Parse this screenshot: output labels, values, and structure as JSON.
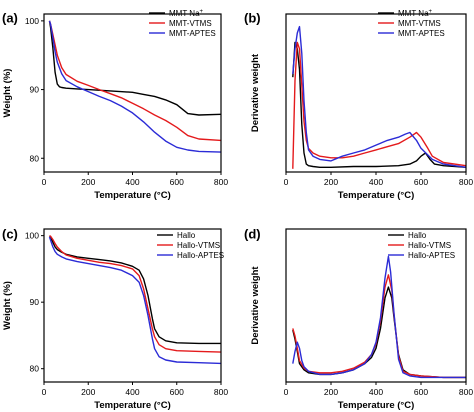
{
  "chart_data": [
    {
      "panel": "(a)",
      "type": "line",
      "xlabel": "Temperature (°C)",
      "ylabel": "Weight (%)",
      "xlim": [
        0,
        800
      ],
      "ylim": [
        78,
        101
      ],
      "xticks": [
        0,
        200,
        400,
        600,
        800
      ],
      "yticks": [
        80,
        90,
        100
      ],
      "legend_position": "top-right",
      "series": [
        {
          "name": "MMT Na+",
          "legend_main": "MMT Na",
          "legend_sup": "+",
          "color": "#000000",
          "x": [
            25,
            30,
            40,
            50,
            60,
            70,
            80,
            100,
            150,
            200,
            300,
            400,
            450,
            500,
            550,
            600,
            650,
            700,
            800
          ],
          "y": [
            100,
            99,
            96,
            92.5,
            90.8,
            90.4,
            90.3,
            90.2,
            90.1,
            90,
            89.8,
            89.6,
            89.3,
            89,
            88.5,
            87.8,
            86.5,
            86.3,
            86.4
          ]
        },
        {
          "name": "MMT-VTMS",
          "color": "#e41a1c",
          "x": [
            25,
            30,
            40,
            50,
            60,
            80,
            100,
            150,
            200,
            250,
            300,
            350,
            400,
            450,
            500,
            550,
            600,
            650,
            700,
            800
          ],
          "y": [
            100,
            99.5,
            98,
            96.5,
            95,
            93.2,
            92.2,
            91.2,
            90.6,
            90,
            89.4,
            88.8,
            88,
            87.2,
            86.3,
            85.5,
            84.5,
            83.3,
            82.8,
            82.6
          ]
        },
        {
          "name": "MMT-APTES",
          "color": "#2b2bd6",
          "x": [
            25,
            30,
            40,
            50,
            60,
            80,
            100,
            150,
            200,
            250,
            300,
            350,
            400,
            450,
            500,
            550,
            600,
            650,
            700,
            800
          ],
          "y": [
            100,
            99.5,
            97.5,
            95.5,
            94,
            92.3,
            91.3,
            90.4,
            89.7,
            89,
            88.4,
            87.6,
            86.6,
            85.3,
            83.8,
            82.5,
            81.6,
            81.2,
            81,
            80.9
          ]
        }
      ]
    },
    {
      "panel": "(b)",
      "type": "line",
      "xlabel": "Temperature (°C)",
      "ylabel": "Derivative weight",
      "xlim": [
        0,
        800
      ],
      "ylim": [
        0,
        1
      ],
      "xticks": [
        0,
        200,
        400,
        600,
        800
      ],
      "yticks": [],
      "legend_position": "top-right",
      "series": [
        {
          "name": "MMT Na+",
          "legend_main": "MMT Na",
          "legend_sup": "+",
          "color": "#000000",
          "x": [
            30,
            40,
            50,
            60,
            70,
            80,
            90,
            100,
            120,
            150,
            200,
            300,
            400,
            500,
            550,
            580,
            600,
            620,
            640,
            660,
            700,
            800
          ],
          "y": [
            0.6,
            0.82,
            0.78,
            0.65,
            0.3,
            0.12,
            0.05,
            0.04,
            0.035,
            0.03,
            0.03,
            0.035,
            0.035,
            0.04,
            0.05,
            0.07,
            0.1,
            0.12,
            0.08,
            0.05,
            0.04,
            0.03
          ]
        },
        {
          "name": "MMT-VTMS",
          "color": "#e41a1c",
          "x": [
            30,
            40,
            50,
            60,
            70,
            80,
            90,
            100,
            120,
            150,
            200,
            250,
            300,
            350,
            400,
            450,
            500,
            550,
            580,
            600,
            630,
            650,
            700,
            800
          ],
          "y": [
            0.02,
            0.58,
            0.82,
            0.78,
            0.55,
            0.32,
            0.2,
            0.15,
            0.12,
            0.1,
            0.09,
            0.09,
            0.1,
            0.12,
            0.14,
            0.16,
            0.18,
            0.22,
            0.25,
            0.22,
            0.15,
            0.1,
            0.06,
            0.04
          ]
        },
        {
          "name": "MMT-APTES",
          "color": "#2b2bd6",
          "x": [
            30,
            40,
            50,
            60,
            70,
            80,
            90,
            100,
            120,
            150,
            200,
            250,
            300,
            350,
            400,
            450,
            500,
            530,
            550,
            580,
            600,
            650,
            700,
            800
          ],
          "y": [
            0.62,
            0.78,
            0.88,
            0.92,
            0.75,
            0.45,
            0.25,
            0.14,
            0.1,
            0.08,
            0.07,
            0.1,
            0.12,
            0.14,
            0.17,
            0.2,
            0.22,
            0.24,
            0.25,
            0.2,
            0.15,
            0.08,
            0.05,
            0.03
          ]
        }
      ]
    },
    {
      "panel": "(c)",
      "type": "line",
      "xlabel": "Temperature (°C)",
      "ylabel": "Weight (%)",
      "xlim": [
        0,
        800
      ],
      "ylim": [
        78,
        101
      ],
      "xticks": [
        0,
        200,
        400,
        600,
        800
      ],
      "yticks": [
        80,
        90,
        100
      ],
      "legend_position": "top-right",
      "series": [
        {
          "name": "Hallo",
          "color": "#000000",
          "x": [
            25,
            30,
            40,
            50,
            60,
            80,
            100,
            150,
            200,
            250,
            300,
            350,
            400,
            430,
            450,
            470,
            490,
            500,
            520,
            550,
            600,
            700,
            800
          ],
          "y": [
            100,
            99.8,
            99,
            98.3,
            97.9,
            97.5,
            97.2,
            96.8,
            96.6,
            96.4,
            96.2,
            95.9,
            95.4,
            94.8,
            93.5,
            91,
            87.5,
            86,
            84.8,
            84.2,
            83.9,
            83.8,
            83.8
          ]
        },
        {
          "name": "Hallo-VTMS",
          "color": "#e41a1c",
          "x": [
            25,
            30,
            40,
            50,
            60,
            80,
            100,
            150,
            200,
            250,
            300,
            350,
            400,
            430,
            450,
            470,
            490,
            500,
            520,
            550,
            600,
            700,
            800
          ],
          "y": [
            100,
            99.9,
            99.4,
            98.8,
            98.3,
            97.6,
            97.1,
            96.6,
            96.3,
            96,
            95.8,
            95.5,
            95,
            94,
            92,
            89,
            86,
            84.8,
            83.6,
            83,
            82.7,
            82.6,
            82.5
          ]
        },
        {
          "name": "Hallo-APTES",
          "color": "#2b2bd6",
          "x": [
            25,
            30,
            40,
            50,
            60,
            80,
            100,
            150,
            200,
            250,
            300,
            350,
            400,
            430,
            450,
            470,
            490,
            500,
            520,
            550,
            600,
            700,
            800
          ],
          "y": [
            99.8,
            99.3,
            98.3,
            97.6,
            97.2,
            96.8,
            96.5,
            96.1,
            95.8,
            95.5,
            95.2,
            94.8,
            94,
            93,
            91,
            88,
            84.5,
            83,
            81.8,
            81.3,
            81,
            80.9,
            80.8
          ]
        }
      ]
    },
    {
      "panel": "(d)",
      "type": "line",
      "xlabel": "Temperature (°C)",
      "ylabel": "Derivative weight",
      "xlim": [
        0,
        800
      ],
      "ylim": [
        0,
        1
      ],
      "xticks": [
        0,
        200,
        400,
        600,
        800
      ],
      "yticks": [],
      "legend_position": "top-right",
      "series": [
        {
          "name": "Hallo",
          "color": "#000000",
          "x": [
            30,
            40,
            50,
            60,
            80,
            100,
            150,
            200,
            250,
            300,
            350,
            380,
            400,
            420,
            440,
            455,
            470,
            480,
            500,
            520,
            550,
            600,
            700,
            800
          ],
          "y": [
            0.34,
            0.28,
            0.2,
            0.12,
            0.08,
            0.06,
            0.05,
            0.05,
            0.06,
            0.08,
            0.12,
            0.16,
            0.22,
            0.35,
            0.55,
            0.62,
            0.55,
            0.42,
            0.18,
            0.08,
            0.05,
            0.04,
            0.03,
            0.03
          ]
        },
        {
          "name": "Hallo-VTMS",
          "color": "#e41a1c",
          "x": [
            30,
            40,
            50,
            60,
            80,
            100,
            150,
            200,
            250,
            300,
            350,
            380,
            400,
            420,
            440,
            455,
            470,
            480,
            500,
            520,
            550,
            600,
            700,
            800
          ],
          "y": [
            0.35,
            0.3,
            0.22,
            0.14,
            0.09,
            0.07,
            0.06,
            0.06,
            0.07,
            0.09,
            0.13,
            0.18,
            0.25,
            0.4,
            0.62,
            0.7,
            0.6,
            0.44,
            0.17,
            0.07,
            0.05,
            0.04,
            0.03,
            0.03
          ]
        },
        {
          "name": "Hallo-APTES",
          "color": "#2b2bd6",
          "x": [
            30,
            40,
            50,
            60,
            70,
            80,
            100,
            150,
            200,
            250,
            300,
            350,
            380,
            400,
            420,
            440,
            455,
            465,
            480,
            500,
            520,
            550,
            600,
            700,
            800
          ],
          "y": [
            0.12,
            0.2,
            0.26,
            0.22,
            0.14,
            0.1,
            0.07,
            0.05,
            0.05,
            0.06,
            0.08,
            0.12,
            0.18,
            0.26,
            0.42,
            0.68,
            0.82,
            0.72,
            0.45,
            0.15,
            0.06,
            0.04,
            0.03,
            0.03,
            0.03
          ]
        }
      ]
    }
  ]
}
